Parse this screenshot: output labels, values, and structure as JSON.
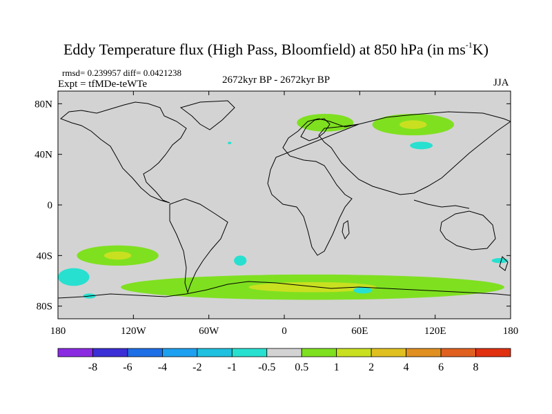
{
  "title": {
    "prefix": "Eddy Temperature flux (High Pass, Bloomfield) at 850 hPa (in ms",
    "sup": "-1",
    "suffix": "K)"
  },
  "stats": "rmsd= 0.239957 diff= 0.0421238",
  "expt": "Expt = tfMDe-teWTe",
  "period": "2672kyr BP - 2672kyr BP",
  "season": "JJA",
  "axes": {
    "lon_ticks": [
      {
        "value": -180,
        "label": "180"
      },
      {
        "value": -120,
        "label": "120W"
      },
      {
        "value": -60,
        "label": "60W"
      },
      {
        "value": 0,
        "label": "0"
      },
      {
        "value": 60,
        "label": "60E"
      },
      {
        "value": 120,
        "label": "120E"
      },
      {
        "value": 180,
        "label": "180"
      }
    ],
    "lat_ticks": [
      {
        "value": 80,
        "label": "80N"
      },
      {
        "value": 40,
        "label": "40N"
      },
      {
        "value": 0,
        "label": "0"
      },
      {
        "value": -40,
        "label": "40S"
      },
      {
        "value": -80,
        "label": "80S"
      }
    ],
    "lon_range": [
      -180,
      180
    ],
    "lat_range": [
      -90,
      90
    ]
  },
  "colorbar": {
    "levels": [
      "-8",
      "-6",
      "-4",
      "-2",
      "-1",
      "-0.5",
      "0.5",
      "1",
      "2",
      "4",
      "6",
      "8"
    ],
    "colors": [
      "#8a2be2",
      "#3b2fd6",
      "#1e6ee6",
      "#1ea0f0",
      "#20c0e0",
      "#28e0d0",
      "#d3d3d3",
      "#7fe020",
      "#c8e020",
      "#e0c020",
      "#e09020",
      "#e06020",
      "#e03010"
    ]
  },
  "chart_data": {
    "type": "map",
    "variable": "Eddy Temperature flux (High Pass, Bloomfield) at 850 hPa",
    "units": "ms-1K",
    "background_level": "-0.5 to 0.5",
    "regions": [
      {
        "name": "scandinavia-positive",
        "lon": [
          10,
          55
        ],
        "lat": [
          58,
          72
        ],
        "range": "0.5 to 1"
      },
      {
        "name": "siberia-positive",
        "lon": [
          70,
          135
        ],
        "lat": [
          55,
          72
        ],
        "range": "0.5 to 2"
      },
      {
        "name": "mongolia-negative",
        "lon": [
          100,
          118
        ],
        "lat": [
          44,
          50
        ],
        "range": "-1 to -0.5"
      },
      {
        "name": "atlantic-negative-spot",
        "lon": [
          -45,
          -42
        ],
        "lat": [
          48,
          50
        ],
        "range": "-1 to -0.5"
      },
      {
        "name": "south-pacific-positive",
        "lon": [
          -165,
          -100
        ],
        "lat": [
          -32,
          -48
        ],
        "range": "0.5 to 2"
      },
      {
        "name": "southern-ocean-positive",
        "lon": [
          -130,
          175
        ],
        "lat": [
          -55,
          -75
        ],
        "range": "0.5 to 2"
      },
      {
        "name": "south-pacific-negative",
        "lon": [
          -180,
          -155
        ],
        "lat": [
          -50,
          -64
        ],
        "range": "-1 to -0.5"
      },
      {
        "name": "south-atlantic-negative",
        "lon": [
          -40,
          -30
        ],
        "lat": [
          -40,
          -48
        ],
        "range": "-1 to -0.5"
      },
      {
        "name": "ross-sea-negative",
        "lon": [
          -160,
          -150
        ],
        "lat": [
          -70,
          -74
        ],
        "range": "-1 to -0.5"
      },
      {
        "name": "indian-ocean-negative",
        "lon": [
          55,
          70
        ],
        "lat": [
          -65,
          -70
        ],
        "range": "-1 to -0.5"
      },
      {
        "name": "tasman-negative",
        "lon": [
          165,
          178
        ],
        "lat": [
          -42,
          -46
        ],
        "range": "-1 to -0.5"
      }
    ]
  }
}
